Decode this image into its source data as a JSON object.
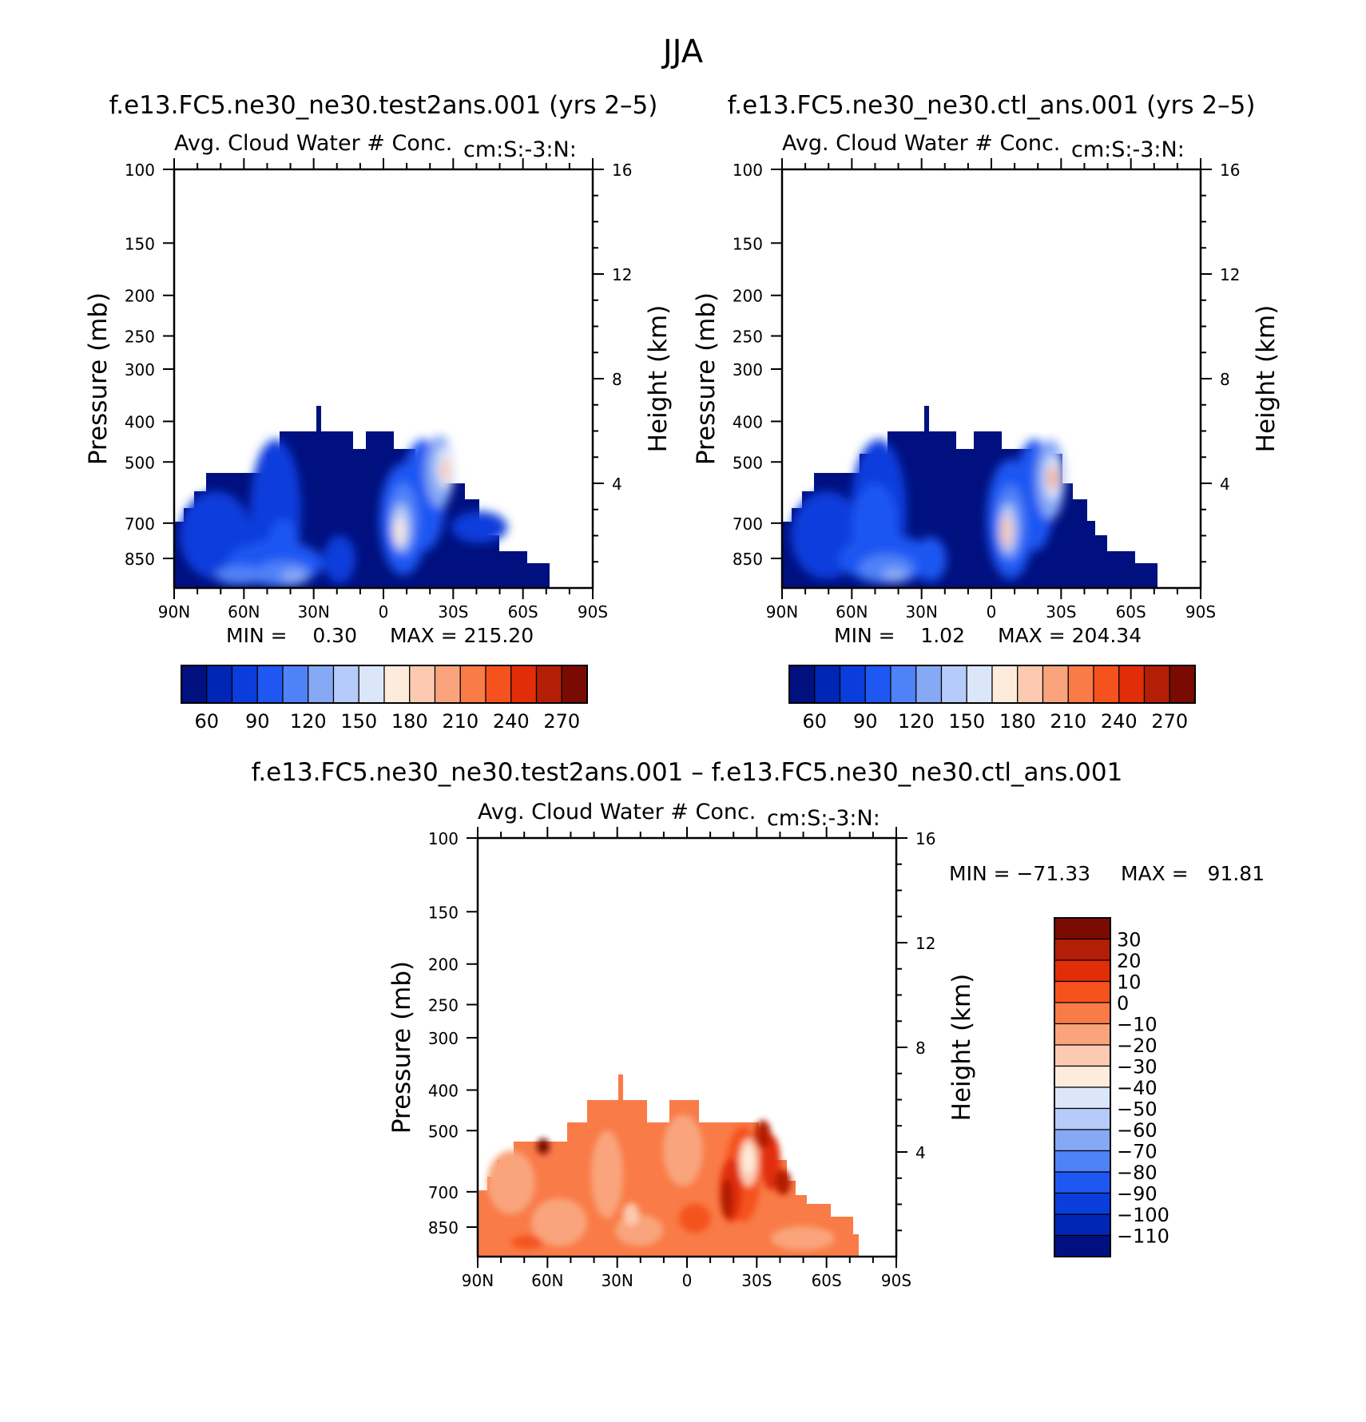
{
  "page_title": "JJA",
  "chart_data": [
    {
      "type": "heatmap",
      "id": "panel-1",
      "case_title": "f.e13.FC5.ne30_ne30.test2ans.001 (yrs 2–5)",
      "variable_label": "Avg. Cloud Water # Conc.",
      "units_label": "cm:S:-3:N:",
      "ylabel_left": "Pressure (mb)",
      "ylabel_right": "Height (km)",
      "x_ticks": [
        "90N",
        "60N",
        "30N",
        "0",
        "30S",
        "60S",
        "90S"
      ],
      "y_ticks": [
        "100",
        "150",
        "200",
        "250",
        "300",
        "400",
        "500",
        "700",
        "850"
      ],
      "height_ticks": [
        "16",
        "12",
        "8",
        "4"
      ],
      "min_text": "MIN =    0.30",
      "max_text": "MAX = 215.20",
      "colorbar_ticks": [
        "60",
        "90",
        "120",
        "150",
        "180",
        "210",
        "240",
        "270"
      ],
      "colorbar_colors": [
        "#00107f",
        "#0026b5",
        "#0a3ddc",
        "#1f57f2",
        "#4f82f7",
        "#86a8f5",
        "#b6cbf9",
        "#dbe6fa",
        "#fdecdc",
        "#fbcab0",
        "#f9a47c",
        "#f97b47",
        "#f5521e",
        "#e12e08",
        "#b31e06",
        "#7a0b02"
      ],
      "field_range": [
        0.3,
        215.2
      ]
    },
    {
      "type": "heatmap",
      "id": "panel-2",
      "case_title": "f.e13.FC5.ne30_ne30.ctl_ans.001 (yrs 2–5)",
      "variable_label": "Avg. Cloud Water # Conc.",
      "units_label": "cm:S:-3:N:",
      "ylabel_left": "Pressure (mb)",
      "ylabel_right": "Height (km)",
      "x_ticks": [
        "90N",
        "60N",
        "30N",
        "0",
        "30S",
        "60S",
        "90S"
      ],
      "y_ticks": [
        "100",
        "150",
        "200",
        "250",
        "300",
        "400",
        "500",
        "700",
        "850"
      ],
      "height_ticks": [
        "16",
        "12",
        "8",
        "4"
      ],
      "min_text": "MIN =    1.02",
      "max_text": "MAX = 204.34",
      "colorbar_ticks": [
        "60",
        "90",
        "120",
        "150",
        "180",
        "210",
        "240",
        "270"
      ],
      "colorbar_colors": [
        "#00107f",
        "#0026b5",
        "#0a3ddc",
        "#1f57f2",
        "#4f82f7",
        "#86a8f5",
        "#b6cbf9",
        "#dbe6fa",
        "#fdecdc",
        "#fbcab0",
        "#f9a47c",
        "#f97b47",
        "#f5521e",
        "#e12e08",
        "#b31e06",
        "#7a0b02"
      ],
      "field_range": [
        1.02,
        204.34
      ]
    },
    {
      "type": "heatmap",
      "id": "panel-diff",
      "case_title": "f.e13.FC5.ne30_ne30.test2ans.001 – f.e13.FC5.ne30_ne30.ctl_ans.001",
      "variable_label": "Avg. Cloud Water # Conc.",
      "units_label": "cm:S:-3:N:",
      "ylabel_left": "Pressure (mb)",
      "ylabel_right": "Height (km)",
      "x_ticks": [
        "90N",
        "60N",
        "30N",
        "0",
        "30S",
        "60S",
        "90S"
      ],
      "y_ticks": [
        "100",
        "150",
        "200",
        "250",
        "300",
        "400",
        "500",
        "700",
        "850"
      ],
      "height_ticks": [
        "16",
        "12",
        "8",
        "4"
      ],
      "min_text": "MIN = −71.33",
      "max_text": "MAX =   91.81",
      "colorbar_ticks": [
        "30",
        "20",
        "10",
        "0",
        "−10",
        "−20",
        "−30",
        "−40",
        "−50",
        "−60",
        "−70",
        "−80",
        "−90",
        "−100",
        "−110"
      ],
      "colorbar_colors": [
        "#7a0b02",
        "#b31e06",
        "#e12e08",
        "#f5521e",
        "#f97b47",
        "#f9a47c",
        "#fbcab0",
        "#fdecdc",
        "#dbe6fa",
        "#b6cbf9",
        "#86a8f5",
        "#4f82f7",
        "#1f57f2",
        "#0a3ddc",
        "#0026b5",
        "#00107f"
      ],
      "field_range": [
        -71.33,
        91.81
      ]
    }
  ]
}
